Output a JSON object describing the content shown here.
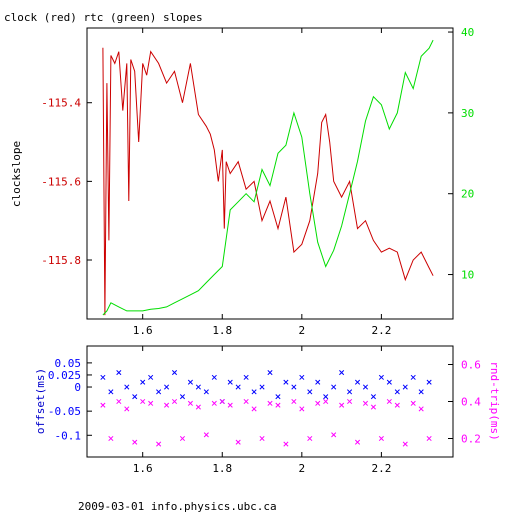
{
  "page": {
    "title": "clock (red) rtc (green) slopes",
    "footer": "2009-03-01 info.physics.ubc.ca"
  },
  "chart_data": [
    {
      "type": "line",
      "title": "clock (red) rtc (green) slopes",
      "xlabel": "",
      "ylabel": "clockslope",
      "y2label": "",
      "xlim": [
        1.46,
        2.38
      ],
      "ylim": [
        -115.95,
        -115.21
      ],
      "y2lim": [
        4.5,
        40.5
      ],
      "x_ticks": [
        1.6,
        1.8,
        2,
        2.2
      ],
      "x_tick_labels": [
        "1.6",
        "1.8",
        "2",
        "2.2"
      ],
      "y_ticks": [
        -115.4,
        -115.6,
        -115.8
      ],
      "y_tick_labels": [
        "-115.4",
        "-115.6",
        "-115.8"
      ],
      "y2_ticks": [
        10,
        20,
        30,
        40
      ],
      "y2_tick_labels": [
        "10",
        "20",
        "30",
        "40"
      ],
      "grid": false,
      "colors": {
        "frame": "#000000",
        "red": "#cc0000",
        "green": "#00dd00"
      },
      "series": [
        {
          "axis": "left",
          "x": [
            1.5,
            1.505,
            1.51,
            1.515,
            1.52,
            1.53,
            1.54,
            1.55,
            1.56,
            1.565,
            1.57,
            1.58,
            1.59,
            1.6,
            1.61,
            1.62,
            1.64,
            1.66,
            1.68,
            1.7,
            1.72,
            1.74,
            1.76,
            1.77,
            1.78,
            1.79,
            1.8,
            1.805,
            1.81,
            1.82,
            1.84,
            1.86,
            1.88,
            1.9,
            1.92,
            1.94,
            1.96,
            1.98,
            2.0,
            2.02,
            2.04,
            2.05,
            2.06,
            2.07,
            2.08,
            2.1,
            2.12,
            2.14,
            2.16,
            2.18,
            2.2,
            2.22,
            2.24,
            2.26,
            2.28,
            2.3,
            2.32,
            2.33
          ],
          "values": [
            -115.26,
            -115.94,
            -115.35,
            -115.75,
            -115.28,
            -115.3,
            -115.27,
            -115.42,
            -115.3,
            -115.65,
            -115.29,
            -115.32,
            -115.5,
            -115.3,
            -115.33,
            -115.27,
            -115.3,
            -115.35,
            -115.32,
            -115.4,
            -115.3,
            -115.43,
            -115.46,
            -115.48,
            -115.52,
            -115.6,
            -115.52,
            -115.72,
            -115.55,
            -115.58,
            -115.55,
            -115.62,
            -115.6,
            -115.7,
            -115.65,
            -115.72,
            -115.64,
            -115.78,
            -115.76,
            -115.7,
            -115.58,
            -115.45,
            -115.43,
            -115.5,
            -115.6,
            -115.64,
            -115.6,
            -115.72,
            -115.7,
            -115.75,
            -115.78,
            -115.77,
            -115.78,
            -115.85,
            -115.8,
            -115.78,
            -115.82,
            -115.84
          ]
        },
        {
          "axis": "right",
          "x": [
            1.5,
            1.51,
            1.52,
            1.54,
            1.56,
            1.58,
            1.6,
            1.62,
            1.64,
            1.66,
            1.68,
            1.7,
            1.72,
            1.74,
            1.76,
            1.78,
            1.8,
            1.82,
            1.84,
            1.86,
            1.88,
            1.9,
            1.92,
            1.94,
            1.96,
            1.98,
            2.0,
            2.02,
            2.04,
            2.06,
            2.08,
            2.1,
            2.12,
            2.14,
            2.16,
            2.18,
            2.2,
            2.22,
            2.24,
            2.26,
            2.28,
            2.3,
            2.32,
            2.33
          ],
          "values": [
            5,
            5.5,
            6.5,
            6,
            5.5,
            5.5,
            5.5,
            5.7,
            5.8,
            6,
            6.5,
            7,
            7.5,
            8,
            9,
            10,
            11,
            18,
            19,
            20,
            19,
            23,
            21,
            25,
            26,
            30,
            27,
            20,
            14,
            11,
            13,
            16,
            20,
            24,
            29,
            32,
            31,
            28,
            30,
            35,
            33,
            37,
            38,
            39
          ]
        }
      ]
    },
    {
      "type": "scatter",
      "xlabel": "",
      "ylabel": "offset(ms)",
      "y2label": "rnd-trip(ms)",
      "xlim": [
        1.46,
        2.38
      ],
      "ylim": [
        -0.145,
        0.085
      ],
      "y2lim": [
        0.1,
        0.7
      ],
      "x_ticks": [
        1.6,
        1.8,
        2,
        2.2
      ],
      "x_tick_labels": [
        "1.6",
        "1.8",
        "2",
        "2.2"
      ],
      "y_ticks": [
        0.05,
        0.025,
        0,
        -0.05,
        -0.1
      ],
      "y_tick_labels": [
        "0.05",
        "0.025",
        "0",
        "-0.05",
        "-0.1"
      ],
      "y2_ticks": [
        0.2,
        0.4,
        0.6
      ],
      "y2_tick_labels": [
        "0.2",
        "0.4",
        "0.6"
      ],
      "grid": false,
      "colors": {
        "frame": "#000000",
        "blue": "#0000ff",
        "magenta": "#ff00ff"
      },
      "series": [
        {
          "axis": "left",
          "marker": "x",
          "x": [
            1.5,
            1.52,
            1.54,
            1.56,
            1.58,
            1.6,
            1.62,
            1.64,
            1.66,
            1.68,
            1.7,
            1.72,
            1.74,
            1.76,
            1.78,
            1.8,
            1.82,
            1.84,
            1.86,
            1.88,
            1.9,
            1.92,
            1.94,
            1.96,
            1.98,
            2.0,
            2.02,
            2.04,
            2.06,
            2.08,
            2.1,
            2.12,
            2.14,
            2.16,
            2.18,
            2.2,
            2.22,
            2.24,
            2.26,
            2.28,
            2.3,
            2.32
          ],
          "values": [
            0.02,
            -0.01,
            0.03,
            0.0,
            -0.02,
            0.01,
            0.02,
            -0.01,
            0.0,
            0.03,
            -0.02,
            0.01,
            0.0,
            -0.01,
            0.02,
            -0.03,
            0.01,
            0.0,
            0.02,
            -0.01,
            0.0,
            0.03,
            -0.02,
            0.01,
            0.0,
            0.02,
            -0.01,
            0.01,
            -0.02,
            0.0,
            0.03,
            -0.01,
            0.01,
            0.0,
            -0.02,
            0.02,
            0.01,
            -0.01,
            0.0,
            0.02,
            -0.01,
            0.01
          ]
        },
        {
          "axis": "right",
          "marker": "x",
          "x": [
            1.5,
            1.52,
            1.54,
            1.56,
            1.58,
            1.6,
            1.62,
            1.64,
            1.66,
            1.68,
            1.7,
            1.72,
            1.74,
            1.76,
            1.78,
            1.8,
            1.82,
            1.84,
            1.86,
            1.88,
            1.9,
            1.92,
            1.94,
            1.96,
            1.98,
            2.0,
            2.02,
            2.04,
            2.06,
            2.08,
            2.1,
            2.12,
            2.14,
            2.16,
            2.18,
            2.2,
            2.22,
            2.24,
            2.26,
            2.28,
            2.3,
            2.32
          ],
          "values": [
            0.38,
            0.2,
            0.4,
            0.36,
            0.18,
            0.4,
            0.39,
            0.17,
            0.38,
            0.4,
            0.2,
            0.39,
            0.37,
            0.22,
            0.39,
            0.4,
            0.38,
            0.18,
            0.4,
            0.36,
            0.2,
            0.39,
            0.38,
            0.17,
            0.4,
            0.36,
            0.2,
            0.39,
            0.4,
            0.22,
            0.38,
            0.4,
            0.18,
            0.39,
            0.37,
            0.2,
            0.4,
            0.38,
            0.17,
            0.39,
            0.36,
            0.2
          ]
        }
      ]
    }
  ]
}
